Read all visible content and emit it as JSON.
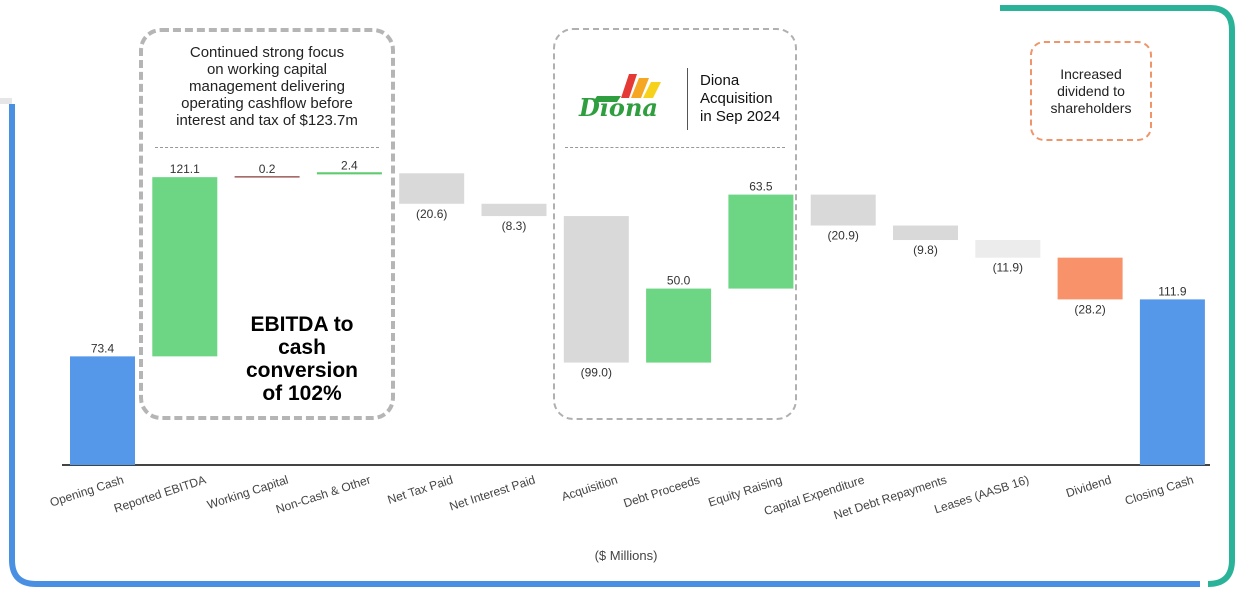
{
  "colors": {
    "increase": "#6dd684",
    "decrease": "#d9d9d9",
    "total": "#5597e8",
    "dividend": "#f7926a",
    "working_capital_line": "#8b3a3a",
    "non_cash_line": "#5fcb6e",
    "leases": "#ececec",
    "frame_blue": "#4a90e2",
    "frame_teal": "#2bb39a"
  },
  "chart_data": {
    "type": "waterfall",
    "title": "",
    "xlabel": "($ Millions)",
    "ylabel": "",
    "grid": false,
    "legend": "none",
    "categories": [
      "Opening Cash",
      "Reported EBITDA",
      "Working Capital",
      "Non-Cash & Other",
      "Net Tax Paid",
      "Net Interest Paid",
      "Acquisition",
      "Debt Proceeds",
      "Equity Raising",
      "Capital Expenditure",
      "Net Debt Repayments",
      "Leases (AASB 16)",
      "Dividend",
      "Closing Cash"
    ],
    "values": [
      73.4,
      121.1,
      0.2,
      2.4,
      -20.6,
      -8.3,
      -99.0,
      50.0,
      63.5,
      -20.9,
      -9.8,
      -11.9,
      -28.2,
      111.9
    ],
    "labels": [
      "73.4",
      "121.1",
      "0.2",
      "2.4",
      "(20.6)",
      "(8.3)",
      "(99.0)",
      "50.0",
      "63.5",
      "(20.9)",
      "(9.8)",
      "(11.9)",
      "(28.2)",
      "111.9"
    ],
    "kinds": [
      "total",
      "increase",
      "line",
      "line",
      "decrease",
      "decrease",
      "decrease",
      "increase",
      "increase",
      "decrease",
      "decrease",
      "decrease",
      "decrease",
      "total"
    ],
    "ylim": [
      0,
      205
    ]
  },
  "callouts": {
    "working_capital": {
      "lines": [
        "Continued strong focus",
        "on working capital",
        "management delivering",
        "operating cashflow before",
        "interest and tax of $123.7m"
      ],
      "headline": [
        "EBITDA to",
        "cash",
        "conversion",
        "of 102%"
      ]
    },
    "acquisition": {
      "logo_text": "Diona",
      "lines": [
        "Diona",
        "Acquisition",
        "in Sep 2024"
      ]
    },
    "dividend": {
      "lines": [
        "Increased",
        "dividend to",
        "shareholders"
      ]
    }
  }
}
